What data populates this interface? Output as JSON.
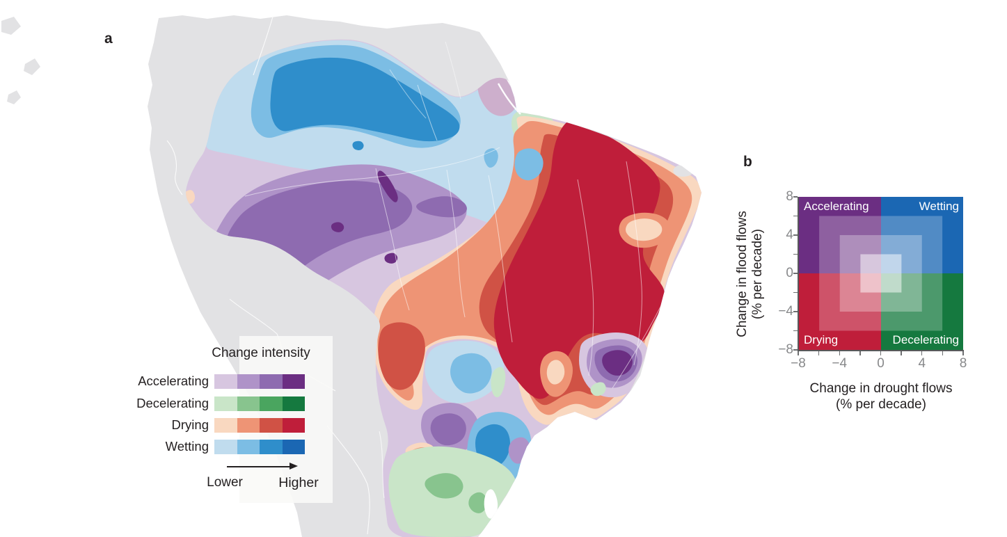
{
  "figure": {
    "panel_a_label": "a",
    "panel_b_label": "b"
  },
  "colors": {
    "background": "#ffffff",
    "ocean": "#ffffff",
    "land": "#e2e2e4",
    "country_border": "#ffffff",
    "river": "#ffffff",
    "pink_patch": "#cdafcc",
    "lagoon": "#ffffff",
    "legend_panel": "rgba(250,249,247,0.9)",
    "axis": "#58595b",
    "tick_label": "#87888a",
    "text": "#231f20",
    "quadrant_label_text": "#ffffff"
  },
  "legend": {
    "title": "Change intensity",
    "rows": [
      {
        "label": "Accelerating",
        "colors": [
          "#d7c6e0",
          "#af93c8",
          "#8e6bb0",
          "#6b2e82"
        ]
      },
      {
        "label": "Decelerating",
        "colors": [
          "#c9e5c8",
          "#88c48e",
          "#4aa55f",
          "#15793f"
        ]
      },
      {
        "label": "Drying",
        "colors": [
          "#f9d8c0",
          "#ee9475",
          "#d05245",
          "#bf1e3a"
        ]
      },
      {
        "label": "Wetting",
        "colors": [
          "#c0dcee",
          "#7cbde4",
          "#2f8ecb",
          "#1b67b3"
        ]
      }
    ],
    "arrow_low_label": "Lower",
    "arrow_high_label": "Higher"
  },
  "quadrant_chart": {
    "x_axis_title_line1": "Change in drought flows",
    "x_axis_title_line2": "(% per decade)",
    "y_axis_title_line1": "Change in flood flows",
    "y_axis_title_line2": "(% per decade)",
    "x_tick_labels": [
      "−8",
      "−4",
      "0",
      "4",
      "8"
    ],
    "y_tick_labels": [
      "8",
      "4",
      "0",
      "−4",
      "−8"
    ],
    "minor_tick_step": 2,
    "axis_min": -8,
    "axis_max": 8,
    "quadrants": [
      {
        "label": "Accelerating",
        "position": "top-left",
        "palette": "Accelerating"
      },
      {
        "label": "Wetting",
        "position": "top-right",
        "palette": "Wetting"
      },
      {
        "label": "Drying",
        "position": "bottom-left",
        "palette": "Drying"
      },
      {
        "label": "Decelerating",
        "position": "bottom-right",
        "palette": "Decelerating"
      }
    ]
  },
  "chart_data": {
    "type": "heatmap",
    "title": "Quadrant legend: direction and intensity of streamflow change",
    "xlabel": "Change in drought flows (% per decade)",
    "ylabel": "Change in flood flows (% per decade)",
    "xlim": [
      -8,
      8
    ],
    "ylim": [
      -8,
      8
    ],
    "x_ticks": [
      -8,
      -4,
      0,
      4,
      8
    ],
    "y_ticks": [
      -8,
      -4,
      0,
      4,
      8
    ],
    "quadrants": [
      {
        "label": "Accelerating",
        "x_sign": "negative",
        "y_sign": "positive",
        "base_color": "#6b2e82"
      },
      {
        "label": "Wetting",
        "x_sign": "positive",
        "y_sign": "positive",
        "base_color": "#1b67b3"
      },
      {
        "label": "Drying",
        "x_sign": "negative",
        "y_sign": "negative",
        "base_color": "#bf1e3a"
      },
      {
        "label": "Decelerating",
        "x_sign": "positive",
        "y_sign": "negative",
        "base_color": "#15793f"
      }
    ],
    "intensity_band_edges": [
      0,
      2,
      4,
      6,
      8
    ],
    "map_categories": [
      "Accelerating",
      "Decelerating",
      "Drying",
      "Wetting"
    ],
    "intensity_scale": [
      "Lower",
      "Higher"
    ]
  }
}
